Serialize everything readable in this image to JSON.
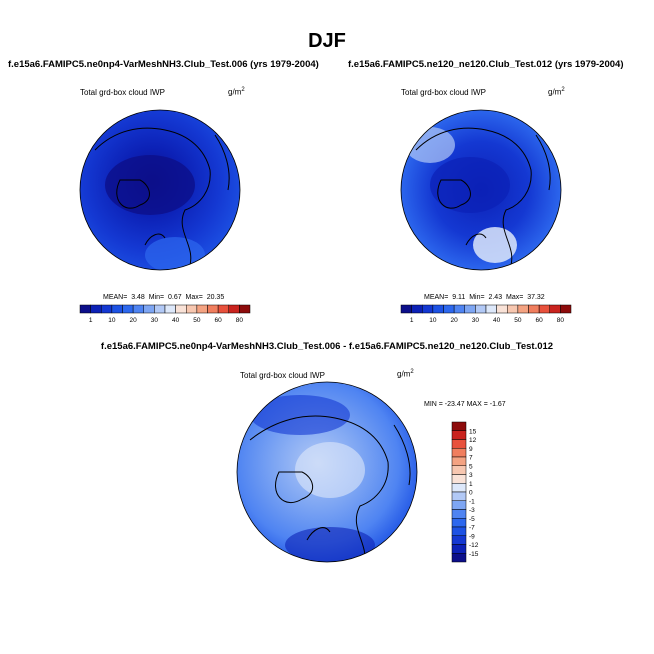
{
  "figure": {
    "title": "DJF",
    "colors": {
      "scale": [
        "#0c0f8a",
        "#0c21b6",
        "#1438d2",
        "#1d52e4",
        "#2d68ee",
        "#4f84f2",
        "#7ea6f3",
        "#b2c9f6",
        "#dde8fa",
        "#f9e2d7",
        "#f7c7b0",
        "#f4a382",
        "#f07e5e",
        "#e8513c",
        "#c9231e",
        "#8d0b0b"
      ],
      "ocean_deep": "#1333c9",
      "coast": "#000000"
    }
  },
  "chart_data": [
    {
      "type": "heatmap",
      "projection": "north polar stereographic",
      "title": "f.e15a6.FAMIPC5.ne0np4-VarMeshNH3.Club_Test.006 (yrs 1979-2004)",
      "variable": "Total grd-box cloud IWP",
      "units": "g/m",
      "units_exp": "2",
      "stats": {
        "mean_label": "MEAN=",
        "mean": "3.48",
        "min_label": "Min=",
        "min": "0.67",
        "max_label": "Max=",
        "max": "20.35"
      },
      "colorbar": {
        "orientation": "horizontal",
        "tick_labels": [
          "1",
          "10",
          "20",
          "30",
          "40",
          "50",
          "60",
          "80"
        ]
      }
    },
    {
      "type": "heatmap",
      "projection": "north polar stereographic",
      "title": "f.e15a6.FAMIPC5.ne120_ne120.Club_Test.012 (yrs 1979-2004)",
      "variable": "Total grd-box cloud IWP",
      "units": "g/m",
      "units_exp": "2",
      "stats": {
        "mean_label": "MEAN=",
        "mean": "9.11",
        "min_label": "Min=",
        "min": "2.43",
        "max_label": "Max=",
        "max": "37.32"
      },
      "colorbar": {
        "orientation": "horizontal",
        "tick_labels": [
          "1",
          "10",
          "20",
          "30",
          "40",
          "50",
          "60",
          "80"
        ]
      }
    },
    {
      "type": "heatmap",
      "projection": "north polar stereographic",
      "title": "f.e15a6.FAMIPC5.ne0np4-VarMeshNH3.Club_Test.006 - f.e15a6.FAMIPC5.ne120_ne120.Club_Test.012",
      "variable": "Total grd-box cloud IWP",
      "units": "g/m",
      "units_exp": "2",
      "minmax": "MIN = -23.47 MAX =  -1.67",
      "colorbar": {
        "orientation": "vertical",
        "tick_labels": [
          "15",
          "12",
          "9",
          "7",
          "5",
          "3",
          "1",
          "0",
          "-1",
          "-3",
          "-5",
          "-7",
          "-9",
          "-12",
          "-15"
        ]
      }
    }
  ]
}
